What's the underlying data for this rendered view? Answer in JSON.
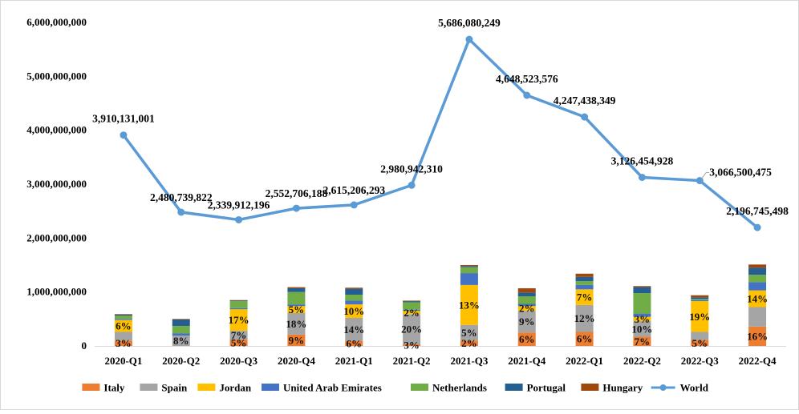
{
  "chart_data": {
    "type": "bar",
    "title": "",
    "xlabel": "",
    "ylabel": "",
    "ylim": [
      0,
      6000000000
    ],
    "y_ticks": [
      "0",
      "1,000,000,000",
      "2,000,000,000",
      "3,000,000,000",
      "4,000,000,000",
      "5,000,000,000",
      "6,000,000,000"
    ],
    "grid": false,
    "legend_position": "bottom",
    "categories": [
      "2020-Q1",
      "2020-Q2",
      "2020-Q3",
      "2020-Q4",
      "2021-Q1",
      "2021-Q2",
      "2021-Q3",
      "2021-Q4",
      "2022-Q1",
      "2022-Q2",
      "2022-Q3",
      "2022-Q4"
    ],
    "series": [
      {
        "name": "Italy",
        "type": "stacked-bar",
        "color": "#ED7D31",
        "values": [
          100000000,
          0,
          120000000,
          210000000,
          90000000,
          30000000,
          100000000,
          250000000,
          260000000,
          170000000,
          110000000,
          360000000
        ],
        "pct_labels": [
          "3%",
          "",
          "5%",
          "9%",
          "6%",
          "3%",
          "2%",
          "6%",
          "6%",
          "7%",
          "5%",
          "16%"
        ]
      },
      {
        "name": "Spain",
        "type": "stacked-bar",
        "color": "#A5A5A5",
        "values": [
          160000000,
          190000000,
          160000000,
          400000000,
          430000000,
          560000000,
          290000000,
          400000000,
          500000000,
          290000000,
          150000000,
          360000000
        ],
        "pct_labels": [
          "",
          "8%",
          "7%",
          "18%",
          "14%",
          "20%",
          "5%",
          "9%",
          "12%",
          "10%",
          "",
          ""
        ]
      },
      {
        "name": "Jordan",
        "type": "stacked-bar",
        "color": "#FFC000",
        "values": [
          220000000,
          0,
          400000000,
          130000000,
          250000000,
          60000000,
          740000000,
          90000000,
          290000000,
          80000000,
          570000000,
          310000000
        ],
        "pct_labels": [
          "6%",
          "",
          "17%",
          "5%",
          "10%",
          "2%",
          "13%",
          "2%",
          "7%",
          "3%",
          "19%",
          "14%"
        ]
      },
      {
        "name": "United Arab Emirates",
        "type": "stacked-bar",
        "color": "#4472C4",
        "values": [
          20000000,
          40000000,
          20000000,
          30000000,
          70000000,
          20000000,
          220000000,
          40000000,
          80000000,
          60000000,
          20000000,
          150000000
        ],
        "pct_labels": [
          "",
          "",
          "",
          "",
          "",
          "",
          "",
          "",
          "",
          "",
          "",
          ""
        ]
      },
      {
        "name": "Netherlands",
        "type": "stacked-bar",
        "color": "#70AD47",
        "values": [
          60000000,
          140000000,
          130000000,
          230000000,
          110000000,
          140000000,
          110000000,
          140000000,
          70000000,
          380000000,
          20000000,
          140000000
        ],
        "pct_labels": [
          "",
          "",
          "",
          "",
          "",
          "",
          "",
          "",
          "",
          "",
          "",
          ""
        ]
      },
      {
        "name": "Portugal",
        "type": "stacked-bar",
        "color": "#255E91",
        "values": [
          20000000,
          120000000,
          10000000,
          70000000,
          110000000,
          20000000,
          20000000,
          70000000,
          80000000,
          110000000,
          30000000,
          130000000
        ],
        "pct_labels": [
          "",
          "",
          "",
          "",
          "",
          "",
          "",
          "",
          "",
          "",
          "",
          ""
        ]
      },
      {
        "name": "Hungary",
        "type": "stacked-bar",
        "color": "#9E480E",
        "values": [
          10000000,
          10000000,
          10000000,
          20000000,
          20000000,
          10000000,
          20000000,
          80000000,
          60000000,
          20000000,
          40000000,
          60000000
        ],
        "pct_labels": [
          "",
          "",
          "",
          "",
          "",
          "",
          "",
          "",
          "",
          "",
          "",
          ""
        ]
      },
      {
        "name": "World",
        "type": "line",
        "color": "#5B9BD5",
        "values": [
          3910131001,
          2480739822,
          2339912196,
          2552706188,
          2615206293,
          2980942310,
          5686080249,
          4648523576,
          4247438349,
          3126454928,
          3066500475,
          2196745498
        ],
        "value_labels": [
          "3,910,131,001",
          "2,480,739,822",
          "2,339,912,196",
          "2,552,706,188",
          "2,615,206,293",
          "2,980,942,310",
          "5,686,080,249",
          "4,648,523,576",
          "4,247,438,349",
          "3,126,454,928",
          "3,066,500,475",
          "2,196,745,498"
        ]
      }
    ]
  }
}
